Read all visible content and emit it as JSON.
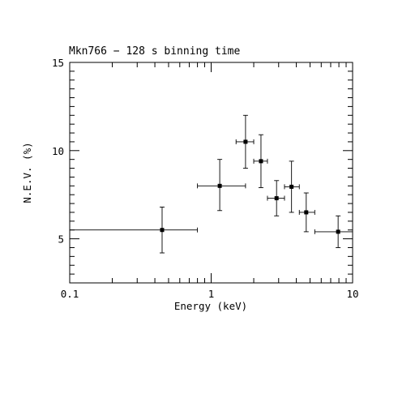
{
  "chart_data": {
    "type": "scatter",
    "title": "Mkn766 − 128 s binning time",
    "xlabel": "Energy (keV)",
    "ylabel": "N.E.V. (%)",
    "x_scale": "log",
    "xlim": [
      0.1,
      10
    ],
    "ylim": [
      2.5,
      15
    ],
    "grid": false,
    "x_tick_labels": [
      {
        "value": 0.1,
        "label": "0.1"
      },
      {
        "value": 1,
        "label": "1"
      },
      {
        "value": 10,
        "label": "10"
      }
    ],
    "y_tick_labels": [
      {
        "value": 5,
        "label": "5"
      },
      {
        "value": 10,
        "label": "10"
      },
      {
        "value": 15,
        "label": "15"
      }
    ],
    "points": [
      {
        "x": 0.45,
        "x_low": 0.1,
        "x_high": 0.8,
        "y": 5.5,
        "y_low": 4.2,
        "y_high": 6.8
      },
      {
        "x": 1.15,
        "x_low": 0.8,
        "x_high": 1.75,
        "y": 8.0,
        "y_low": 6.6,
        "y_high": 9.5
      },
      {
        "x": 1.75,
        "x_low": 1.5,
        "x_high": 2.0,
        "y": 10.5,
        "y_low": 9.0,
        "y_high": 12.0
      },
      {
        "x": 2.25,
        "x_low": 2.0,
        "x_high": 2.5,
        "y": 9.4,
        "y_low": 7.9,
        "y_high": 10.9
      },
      {
        "x": 2.9,
        "x_low": 2.5,
        "x_high": 3.3,
        "y": 7.3,
        "y_low": 6.3,
        "y_high": 8.3
      },
      {
        "x": 3.7,
        "x_low": 3.3,
        "x_high": 4.2,
        "y": 7.95,
        "y_low": 6.5,
        "y_high": 9.4
      },
      {
        "x": 4.7,
        "x_low": 4.2,
        "x_high": 5.4,
        "y": 6.5,
        "y_low": 5.4,
        "y_high": 7.6
      },
      {
        "x": 7.9,
        "x_low": 5.4,
        "x_high": 10.0,
        "y": 5.4,
        "y_low": 4.5,
        "y_high": 6.3
      }
    ]
  }
}
